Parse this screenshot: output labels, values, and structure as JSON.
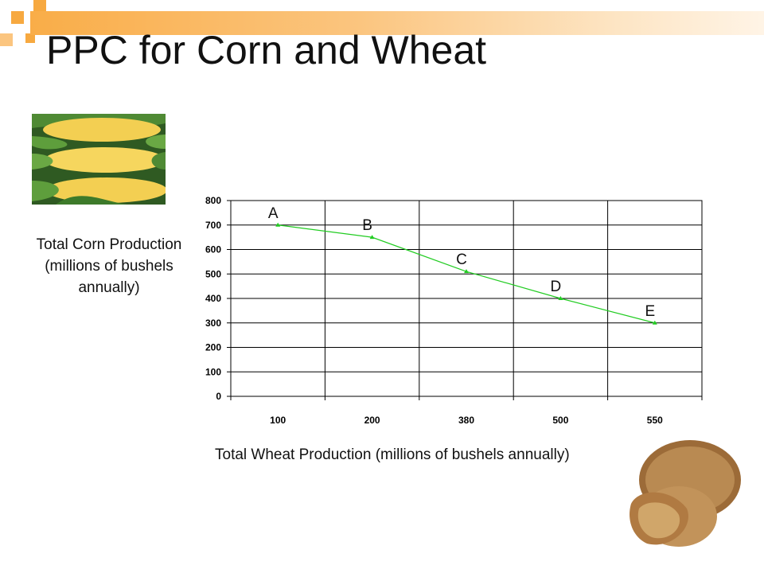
{
  "slide": {
    "title": "PPC for Corn and Wheat",
    "y_axis_label": "Total Corn Production (millions of bushels annually)",
    "x_axis_label": "Total Wheat Production (millions of bushels annually)"
  },
  "images": {
    "corn": "corn-cobs-photo",
    "grain": "wheat-grain-bowl-photo"
  },
  "colors": {
    "line": "#22cc22",
    "accent": "#f7a940"
  },
  "chart_data": {
    "type": "line",
    "categories": [
      "100",
      "200",
      "380",
      "500",
      "550"
    ],
    "series": [
      {
        "values": [
          700,
          650,
          510,
          400,
          300
        ]
      }
    ],
    "point_labels": [
      "A",
      "B",
      "C",
      "D",
      "E"
    ],
    "ylim": [
      0,
      800
    ],
    "yticks": [
      "0",
      "100",
      "200",
      "300",
      "400",
      "500",
      "600",
      "700",
      "800"
    ],
    "grid": true,
    "xlabel": "Total Wheat Production (millions of bushels annually)",
    "ylabel": "Total Corn Production (millions of bushels annually)",
    "title": "PPC for Corn and Wheat"
  }
}
